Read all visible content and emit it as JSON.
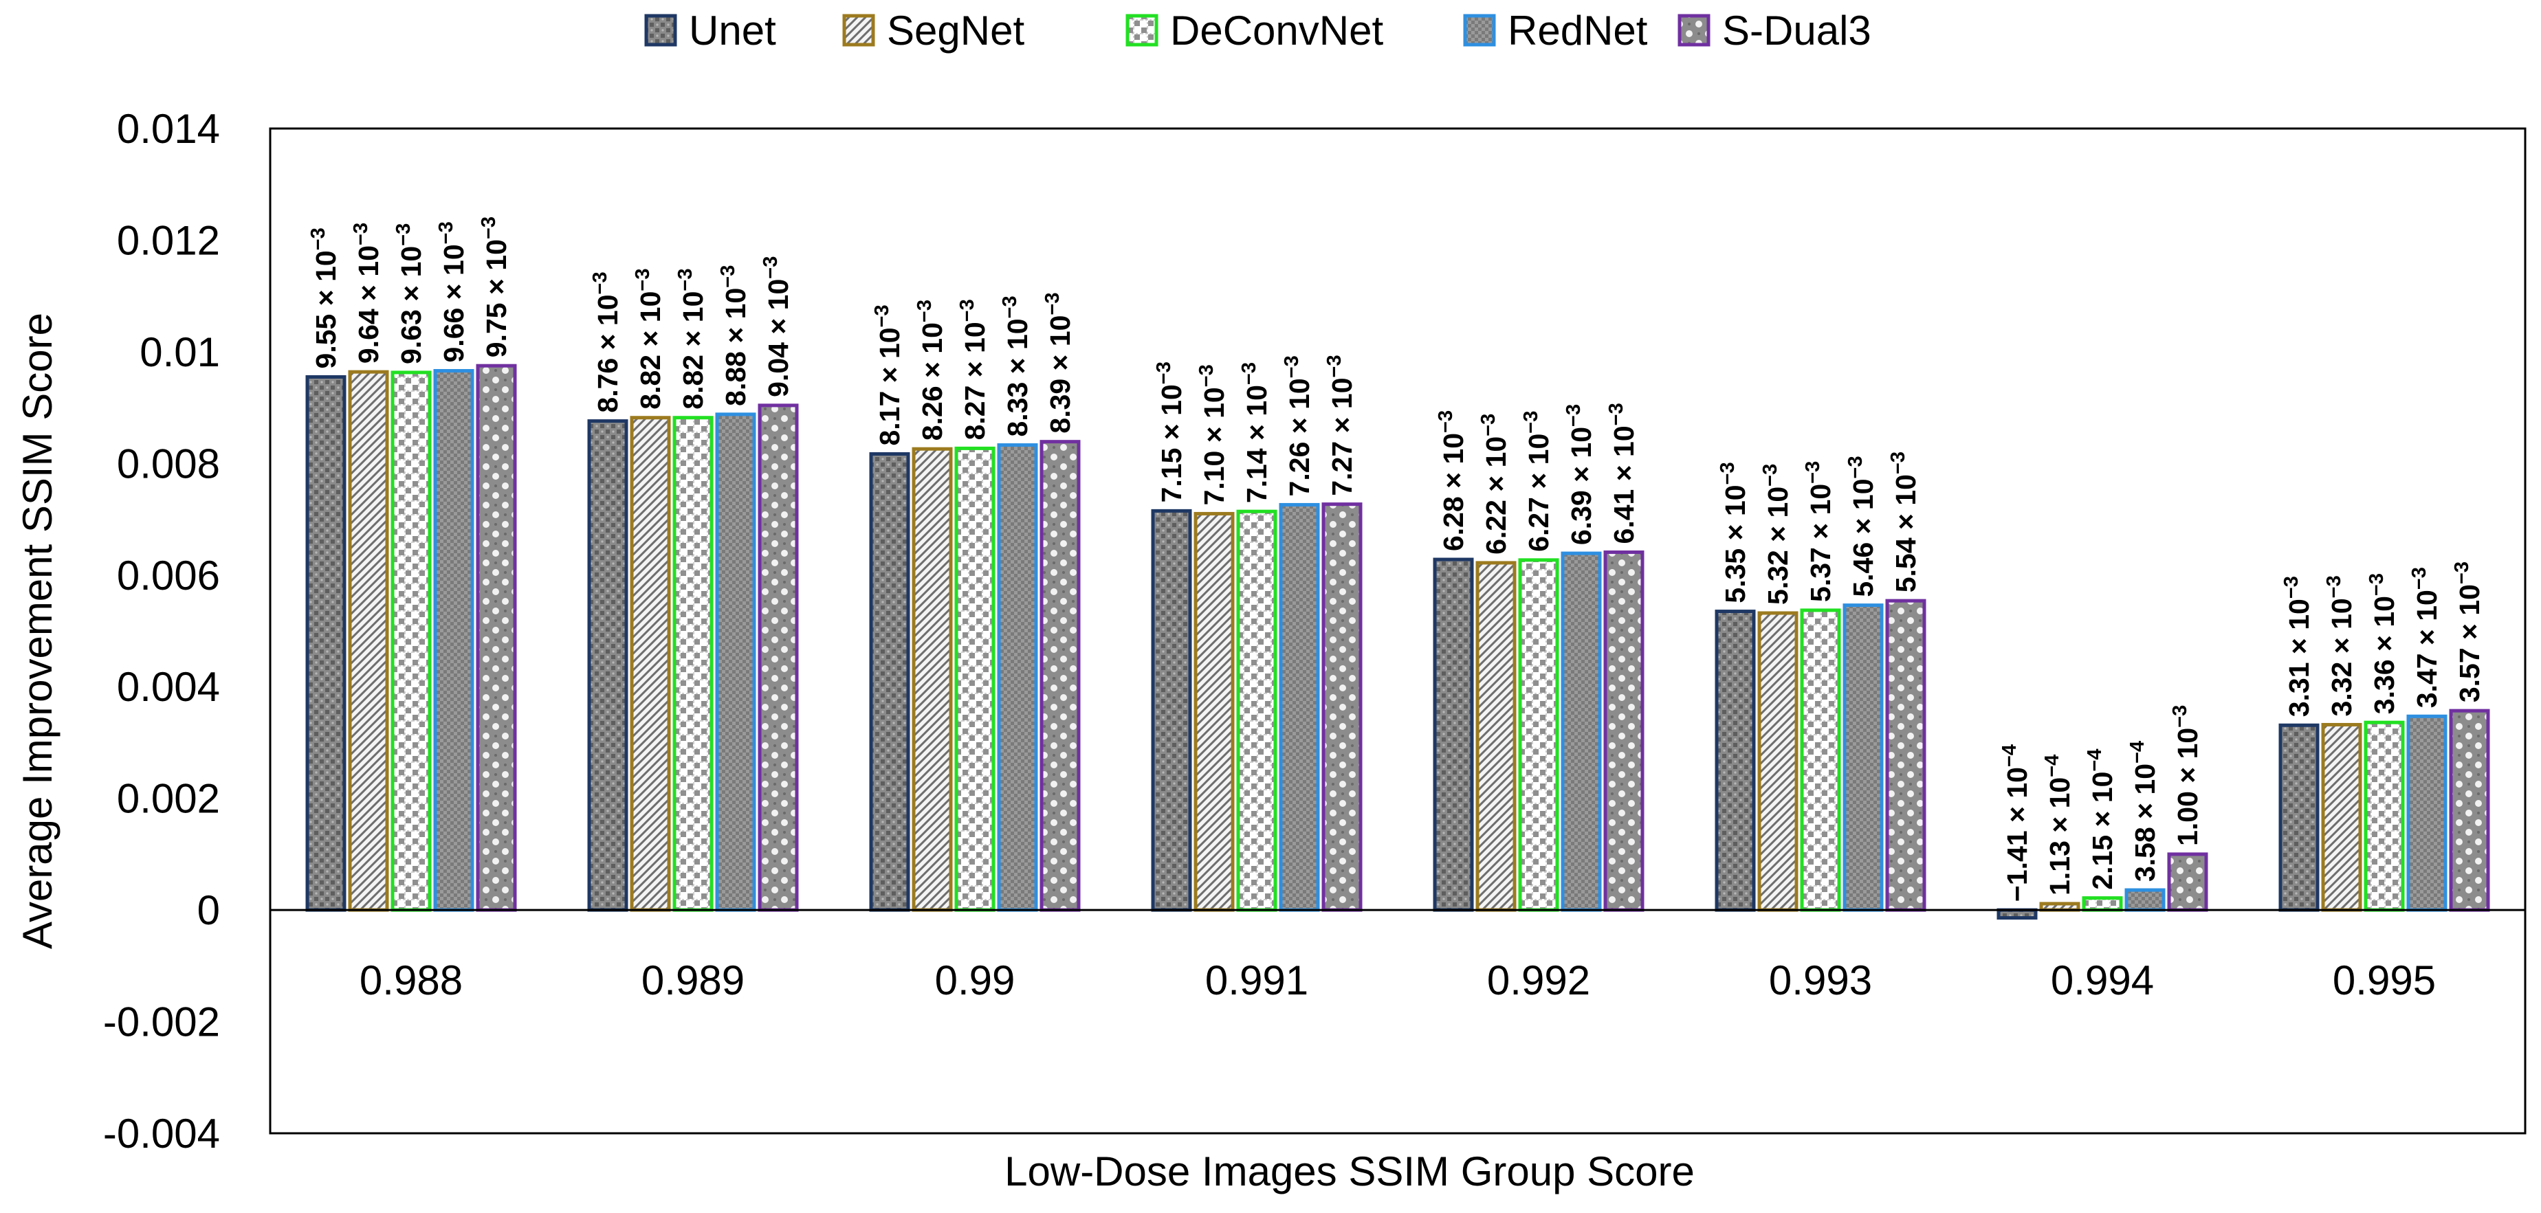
{
  "chart_data": {
    "type": "bar",
    "title": "",
    "xlabel": "Low-Dose Images SSIM Group Score",
    "ylabel": "Average Improvement SSIM Score",
    "ylim": [
      -0.004,
      0.014
    ],
    "y_ticks": [
      -0.004,
      -0.002,
      0,
      0.002,
      0.004,
      0.006,
      0.008,
      0.01,
      0.012,
      0.014
    ],
    "y_tick_labels": [
      "-0.004",
      "-0.002",
      "0",
      "0.002",
      "0.004",
      "0.006",
      "0.008",
      "0.01",
      "0.012",
      "0.014"
    ],
    "grid": false,
    "legend_position": "top",
    "categories": [
      "0.988",
      "0.989",
      "0.99",
      "0.991",
      "0.992",
      "0.993",
      "0.994",
      "0.995"
    ],
    "series": [
      {
        "name": "Unet",
        "color": "#1f3864",
        "values": [
          0.00955,
          0.00876,
          0.00817,
          0.00715,
          0.00628,
          0.00535,
          -0.000141,
          0.00331
        ],
        "labels": [
          {
            "base": "9.55 × 10",
            "exp": "−3"
          },
          {
            "base": "8.76 × 10",
            "exp": "−3"
          },
          {
            "base": "8.17 × 10",
            "exp": "−3"
          },
          {
            "base": "7.15 × 10",
            "exp": "−3"
          },
          {
            "base": "6.28 × 10",
            "exp": "−3"
          },
          {
            "base": "5.35 × 10",
            "exp": "−3"
          },
          {
            "base": "−1.41 × 10",
            "exp": "−4"
          },
          {
            "base": "3.31 × 10",
            "exp": "−3"
          }
        ]
      },
      {
        "name": "SegNet",
        "color": "#9c7b1f",
        "values": [
          0.00964,
          0.00882,
          0.00826,
          0.0071,
          0.00622,
          0.00532,
          0.000113,
          0.00332
        ],
        "labels": [
          {
            "base": "9.64 × 10",
            "exp": "−3"
          },
          {
            "base": "8.82 × 10",
            "exp": "−3"
          },
          {
            "base": "8.26 × 10",
            "exp": "−3"
          },
          {
            "base": "7.10 × 10",
            "exp": "−3"
          },
          {
            "base": "6.22 × 10",
            "exp": "−3"
          },
          {
            "base": "5.32 × 10",
            "exp": "−3"
          },
          {
            "base": "1.13 × 10",
            "exp": "−4"
          },
          {
            "base": "3.32 × 10",
            "exp": "−3"
          }
        ]
      },
      {
        "name": "DeConvNet",
        "color": "#22e022",
        "values": [
          0.00963,
          0.00882,
          0.00827,
          0.00714,
          0.00627,
          0.00537,
          0.000215,
          0.00336
        ],
        "labels": [
          {
            "base": "9.63 × 10",
            "exp": "−3"
          },
          {
            "base": "8.82 × 10",
            "exp": "−3"
          },
          {
            "base": "8.27 × 10",
            "exp": "−3"
          },
          {
            "base": "7.14 × 10",
            "exp": "−3"
          },
          {
            "base": "6.27 × 10",
            "exp": "−3"
          },
          {
            "base": "5.37 × 10",
            "exp": "−3"
          },
          {
            "base": "2.15 × 10",
            "exp": "−4"
          },
          {
            "base": "3.36 × 10",
            "exp": "−3"
          }
        ]
      },
      {
        "name": "RedNet",
        "color": "#2e8fe0",
        "values": [
          0.00966,
          0.00888,
          0.00833,
          0.00726,
          0.00639,
          0.00546,
          0.000358,
          0.00347
        ],
        "labels": [
          {
            "base": "9.66 × 10",
            "exp": "−3"
          },
          {
            "base": "8.88 × 10",
            "exp": "−3"
          },
          {
            "base": "8.33 × 10",
            "exp": "−3"
          },
          {
            "base": "7.26 × 10",
            "exp": "−3"
          },
          {
            "base": "6.39 × 10",
            "exp": "−3"
          },
          {
            "base": "5.46 × 10",
            "exp": "−3"
          },
          {
            "base": "3.58 × 10",
            "exp": "−4"
          },
          {
            "base": "3.47 × 10",
            "exp": "−3"
          }
        ]
      },
      {
        "name": "S-Dual3",
        "color": "#7030a0",
        "values": [
          0.00975,
          0.00904,
          0.00839,
          0.00727,
          0.00641,
          0.00554,
          0.001,
          0.00357
        ],
        "labels": [
          {
            "base": "9.75 × 10",
            "exp": "−3"
          },
          {
            "base": "9.04 × 10",
            "exp": "−3"
          },
          {
            "base": "8.39 × 10",
            "exp": "−3"
          },
          {
            "base": "7.27 × 10",
            "exp": "−3"
          },
          {
            "base": "6.41 × 10",
            "exp": "−3"
          },
          {
            "base": "5.54 × 10",
            "exp": "−3"
          },
          {
            "base": "1.00 × 10",
            "exp": "−3"
          },
          {
            "base": "3.57 × 10",
            "exp": "−3"
          }
        ]
      }
    ]
  }
}
